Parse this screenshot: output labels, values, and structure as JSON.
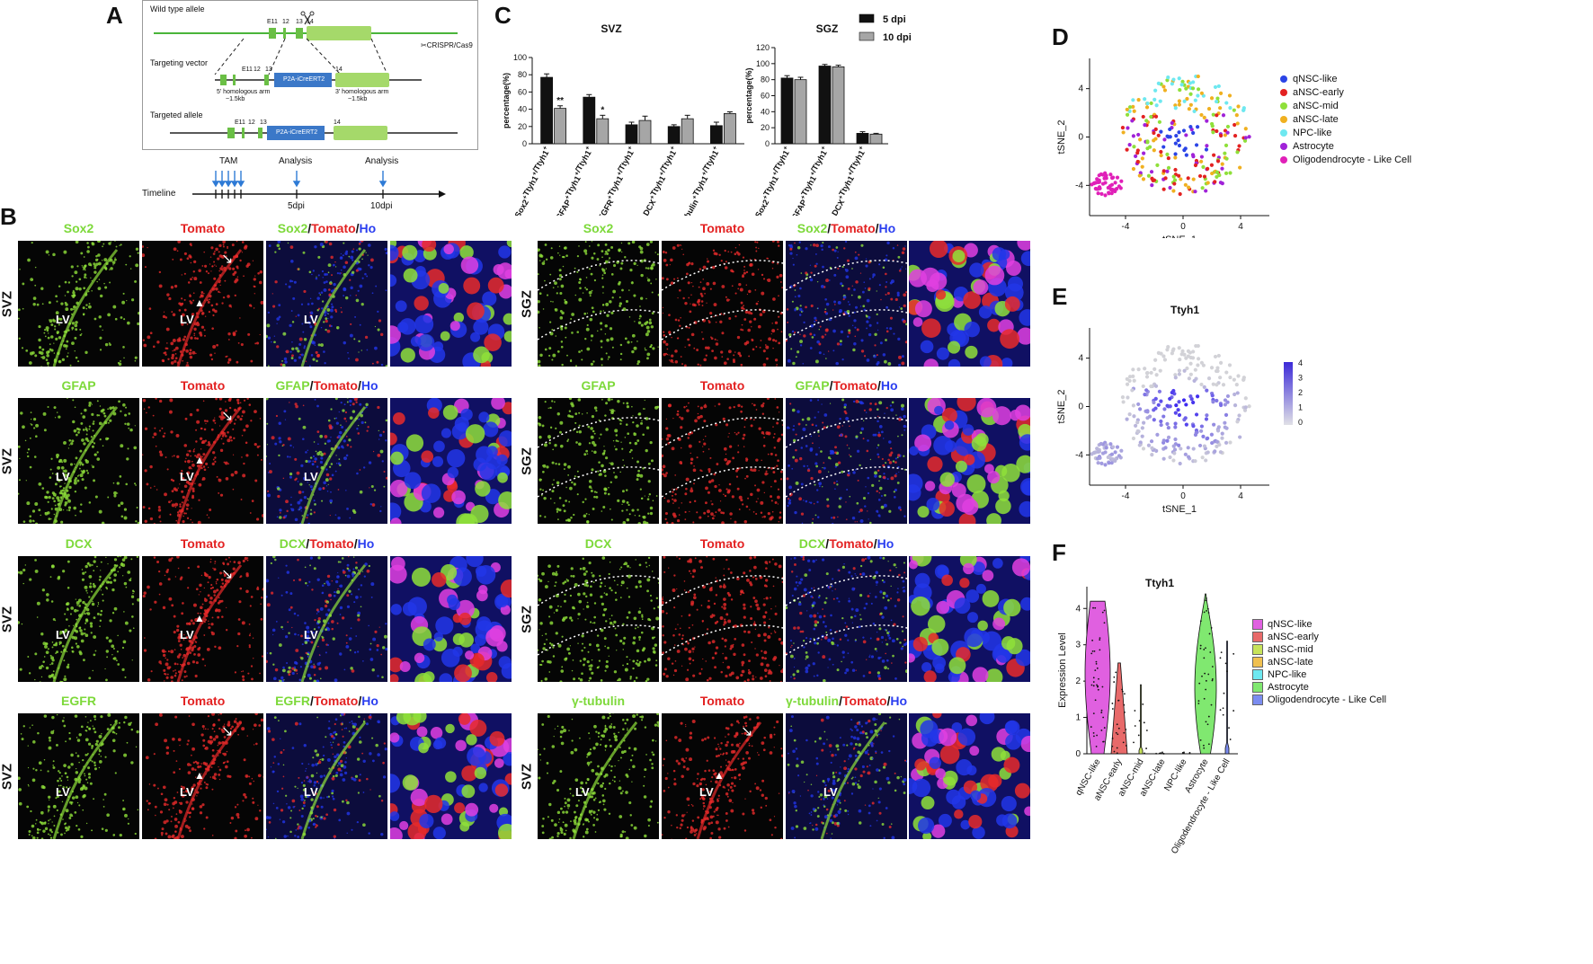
{
  "panels": {
    "A": "A",
    "B": "B",
    "C": "C",
    "D": "D",
    "E": "E",
    "F": "F"
  },
  "panelA": {
    "wild_type": "Wild type allele",
    "targeting_vector": "Targeting vector",
    "targeted_allele": "Targeted allele",
    "crispr": "CRISPR/Cas9",
    "exon_e11": "E11",
    "exon_12": "12",
    "exon_13": "13",
    "exon_14": "14",
    "cassette": "P2A-iCreERT2",
    "arm5": "5' homologous arm",
    "arm5_len": "~1.5kb",
    "arm3": "3' homologous arm",
    "arm3_len": "~1.5kb",
    "tam": "TAM",
    "analysis1": "Analysis",
    "analysis2": "Analysis",
    "timeline": "Timeline",
    "dpi5": "5dpi",
    "dpi10": "10dpi"
  },
  "panelB": {
    "left_cols": [
      [
        "Sox2",
        "Tomato",
        "Sox2/Tomato/Ho"
      ],
      [
        "GFAP",
        "Tomato",
        "GFAP/Tomato/Ho"
      ],
      [
        "DCX",
        "Tomato",
        "DCX/Tomato/Ho"
      ],
      [
        "EGFR",
        "Tomato",
        "EGFR/Tomato/Ho"
      ]
    ],
    "right_cols": [
      [
        "Sox2",
        "Tomato",
        "Sox2/Tomato/Ho"
      ],
      [
        "GFAP",
        "Tomato",
        "GFAP/Tomato/Ho"
      ],
      [
        "DCX",
        "Tomato",
        "DCX/Tomato/Ho"
      ],
      [
        "γ-tubulin",
        "Tomato",
        "γ-tubulin/Tomato/Ho"
      ]
    ],
    "left_rows": [
      "SVZ",
      "SVZ",
      "SVZ",
      "SVZ"
    ],
    "right_rows": [
      "SGZ",
      "SGZ",
      "SGZ",
      "SVZ"
    ],
    "lv": "LV"
  },
  "chart_data": [
    {
      "type": "bar",
      "title": "SVZ",
      "ylabel": "percentage(%)",
      "ylim": [
        0,
        100
      ],
      "yticks": [
        0,
        20,
        40,
        60,
        80,
        100
      ],
      "categories": [
        "Sox2+Ttyh1+/Ttyh1+",
        "GFAP+Ttyh1+/Ttyh1+",
        "EGFR+Ttyh1+/Ttyh1+",
        "DCX+Ttyh1+/Ttyh1+",
        "γ-tubulin+Ttyh1+/Ttyh1+"
      ],
      "series": [
        {
          "name": "5 dpi",
          "color": "#111111",
          "values": [
            77,
            54,
            22,
            20,
            21
          ],
          "errors": [
            4,
            3,
            3,
            2,
            4
          ]
        },
        {
          "name": "10 dpi",
          "color": "#a6a6a6",
          "values": [
            41,
            29,
            27,
            29,
            35
          ],
          "errors": [
            3,
            4,
            5,
            4,
            2
          ]
        }
      ],
      "significance": [
        "**",
        "*",
        "",
        "",
        ""
      ]
    },
    {
      "type": "bar",
      "title": "SGZ",
      "ylabel": "percentage(%)",
      "ylim": [
        0,
        120
      ],
      "yticks": [
        0,
        20,
        40,
        60,
        80,
        100,
        120
      ],
      "categories": [
        "Sox2+Ttyh1+/Ttyh1+",
        "GFAP+Ttyh1+/Ttyh1+",
        "DCX+Ttyh1+/Ttyh1+"
      ],
      "series": [
        {
          "name": "5 dpi",
          "color": "#111111",
          "values": [
            82,
            97,
            13
          ],
          "errors": [
            3,
            2,
            2
          ]
        },
        {
          "name": "10 dpi",
          "color": "#a6a6a6",
          "values": [
            80,
            96,
            12
          ],
          "errors": [
            3,
            2,
            1
          ]
        }
      ]
    },
    {
      "type": "scatter",
      "title": "",
      "xlabel": "tSNE_1",
      "ylabel": "tSNE_2",
      "xticks": [
        -4,
        0,
        4
      ],
      "yticks": [
        -4,
        0,
        4
      ],
      "legend": [
        {
          "name": "qNSC-like",
          "color": "#2b44e6"
        },
        {
          "name": "aNSC-early",
          "color": "#e32222"
        },
        {
          "name": "aNSC-mid",
          "color": "#8fe03a"
        },
        {
          "name": "aNSC-late",
          "color": "#f0b020"
        },
        {
          "name": "NPC-like",
          "color": "#6ee8f0"
        },
        {
          "name": "Astrocyte",
          "color": "#a022d8"
        },
        {
          "name": "Oligodendrocyte - Like Cell",
          "color": "#e020b8"
        }
      ]
    },
    {
      "type": "scatter",
      "title": "Ttyh1",
      "xlabel": "tSNE_1",
      "ylabel": "tSNE_2",
      "xticks": [
        -4,
        0,
        4
      ],
      "yticks": [
        -4,
        0,
        4
      ],
      "colorbar_ticks": [
        4,
        3,
        2,
        1,
        0
      ]
    },
    {
      "type": "violin",
      "title": "Ttyh1",
      "ylabel": "Expression Level",
      "yticks": [
        0,
        1,
        2,
        3,
        4
      ],
      "categories": [
        "qNSC-like",
        "aNSC-early",
        "aNSC-mid",
        "aNSC-late",
        "NPC-like",
        "Astrocyte",
        "Oligodendrocyte - Like Cell"
      ],
      "colors": [
        "#e060e0",
        "#e86a6a",
        "#c7e35a",
        "#f0c050",
        "#6ee8f0",
        "#80e870",
        "#7b8cf0"
      ],
      "max": [
        4.2,
        2.5,
        1.9,
        0.05,
        0.05,
        4.4,
        3.1
      ],
      "legend": [
        "qNSC-like",
        "aNSC-early",
        "aNSC-mid",
        "aNSC-late",
        "NPC-like",
        "Astrocyte",
        "Oligodendrocyte - Like Cell"
      ]
    }
  ]
}
